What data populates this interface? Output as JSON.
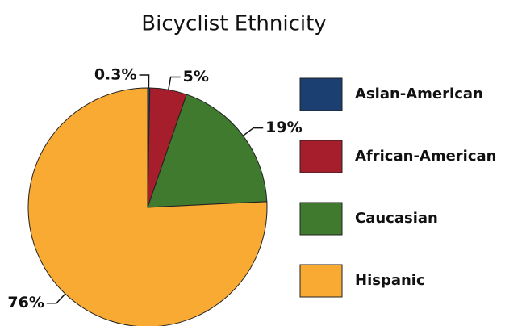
{
  "chart_data": {
    "type": "pie",
    "title": "Bicyclist Ethnicity",
    "categories": [
      "Asian-American",
      "African-American",
      "Caucasian",
      "Hispanic"
    ],
    "values": [
      0.3,
      5,
      19,
      76
    ],
    "value_labels": [
      "0.3%",
      "5%",
      "19%",
      "76%"
    ],
    "colors": [
      "#1b3f70",
      "#a61e2b",
      "#3f7a2f",
      "#f9aa33"
    ]
  }
}
